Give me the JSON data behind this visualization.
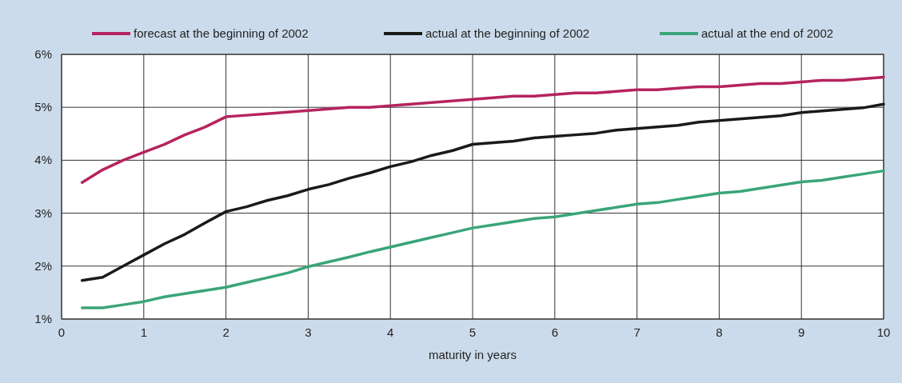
{
  "chart_data": {
    "type": "line",
    "xlabel": "maturity in years",
    "x": [
      0.25,
      0.5,
      0.75,
      1,
      1.25,
      1.5,
      1.75,
      2,
      2.25,
      2.5,
      2.75,
      3,
      3.25,
      3.5,
      3.75,
      4,
      4.25,
      4.5,
      4.75,
      5,
      5.25,
      5.5,
      5.75,
      6,
      6.25,
      6.5,
      6.75,
      7,
      7.25,
      7.5,
      7.75,
      8,
      8.25,
      8.5,
      8.75,
      9,
      9.25,
      9.5,
      9.75,
      10
    ],
    "series": [
      {
        "name": "forecast at the beginning of 2002",
        "color": "#b5245f",
        "values": [
          3.58,
          3.82,
          4.0,
          4.15,
          4.3,
          4.48,
          4.63,
          4.82,
          4.85,
          4.88,
          4.91,
          4.94,
          4.97,
          5.0,
          5.0,
          5.03,
          5.06,
          5.09,
          5.12,
          5.15,
          5.18,
          5.21,
          5.21,
          5.24,
          5.27,
          5.27,
          5.3,
          5.33,
          5.33,
          5.36,
          5.39,
          5.39,
          5.42,
          5.45,
          5.45,
          5.48,
          5.51,
          5.51,
          5.54,
          5.57
        ]
      },
      {
        "name": "actual at the beginning of 2002",
        "color": "#1a1a1a",
        "values": [
          1.73,
          1.79,
          2.0,
          2.21,
          2.42,
          2.6,
          2.82,
          3.03,
          3.12,
          3.24,
          3.33,
          3.45,
          3.54,
          3.66,
          3.76,
          3.88,
          3.97,
          4.09,
          4.18,
          4.3,
          4.33,
          4.36,
          4.42,
          4.45,
          4.48,
          4.51,
          4.57,
          4.6,
          4.63,
          4.66,
          4.72,
          4.75,
          4.78,
          4.81,
          4.84,
          4.9,
          4.93,
          4.96,
          4.99,
          5.06
        ]
      },
      {
        "name": "actual at the end of 2002",
        "color": "#3aa57a",
        "values": [
          1.21,
          1.21,
          1.27,
          1.33,
          1.42,
          1.48,
          1.54,
          1.6,
          1.69,
          1.78,
          1.87,
          1.99,
          2.08,
          2.17,
          2.27,
          2.36,
          2.45,
          2.54,
          2.63,
          2.72,
          2.78,
          2.84,
          2.9,
          2.93,
          2.99,
          3.05,
          3.11,
          3.17,
          3.2,
          3.26,
          3.32,
          3.38,
          3.41,
          3.47,
          3.53,
          3.59,
          3.62,
          3.68,
          3.74,
          3.8
        ]
      }
    ],
    "xlim": [
      0,
      10
    ],
    "xticks": [
      0,
      1,
      2,
      3,
      4,
      5,
      6,
      7,
      8,
      9,
      10
    ],
    "ylim": [
      1,
      6
    ],
    "yticks": [
      {
        "value": 1,
        "label": "1%"
      },
      {
        "value": 2,
        "label": "2%"
      },
      {
        "value": 3,
        "label": "3%"
      },
      {
        "value": 4,
        "label": "4%"
      },
      {
        "value": 5,
        "label": "5%"
      },
      {
        "value": 6,
        "label": "6%"
      }
    ],
    "grid": true,
    "legend": "top",
    "marker": "none",
    "line_style": "solid"
  }
}
